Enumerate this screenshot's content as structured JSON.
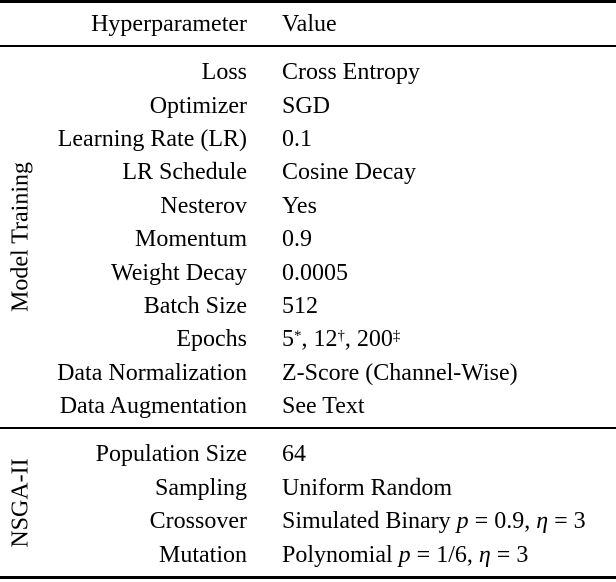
{
  "table": {
    "colors": {
      "text": "#000000",
      "background": "#ffffff",
      "rule": "#000000"
    },
    "header": {
      "col1": "Hyperparameter",
      "col2": "Value"
    },
    "sections": [
      {
        "group_label": "Model Training",
        "rows": [
          {
            "label": "Loss",
            "value": [
              {
                "t": "Cross Entropy"
              }
            ]
          },
          {
            "label": "Optimizer",
            "value": [
              {
                "t": "SGD"
              }
            ]
          },
          {
            "label": "Learning Rate (LR)",
            "value": [
              {
                "t": "0.1"
              }
            ]
          },
          {
            "label": "LR Schedule",
            "value": [
              {
                "t": "Cosine Decay"
              }
            ]
          },
          {
            "label": "Nesterov",
            "value": [
              {
                "t": "Yes"
              }
            ]
          },
          {
            "label": "Momentum",
            "value": [
              {
                "t": "0.9"
              }
            ]
          },
          {
            "label": "Weight Decay",
            "value": [
              {
                "t": "0.0005"
              }
            ]
          },
          {
            "label": "Batch Size",
            "value": [
              {
                "t": "512"
              }
            ]
          },
          {
            "label": "Epochs",
            "value": [
              {
                "t": "5"
              },
              {
                "t": "*",
                "s": "sup"
              },
              {
                "t": ", 12"
              },
              {
                "t": "†",
                "s": "sup"
              },
              {
                "t": ", 200"
              },
              {
                "t": "‡",
                "s": "sup"
              }
            ]
          },
          {
            "label": "Data Normalization",
            "value": [
              {
                "t": "Z-Score (Channel-Wise)"
              }
            ]
          },
          {
            "label": "Data Augmentation",
            "value": [
              {
                "t": "See Text"
              }
            ]
          }
        ]
      },
      {
        "group_label": "NSGA-II",
        "rows": [
          {
            "label": "Population Size",
            "value": [
              {
                "t": "64"
              }
            ]
          },
          {
            "label": "Sampling",
            "value": [
              {
                "t": "Uniform Random"
              }
            ]
          },
          {
            "label": "Crossover",
            "value": [
              {
                "t": "Simulated Binary "
              },
              {
                "t": "p",
                "s": "italic"
              },
              {
                "t": " = 0.9, "
              },
              {
                "t": "η",
                "s": "italic"
              },
              {
                "t": " = 3"
              }
            ]
          },
          {
            "label": "Mutation",
            "value": [
              {
                "t": "Polynomial "
              },
              {
                "t": "p",
                "s": "italic"
              },
              {
                "t": " = 1/6, "
              },
              {
                "t": "η",
                "s": "italic"
              },
              {
                "t": " = 3"
              }
            ]
          }
        ]
      }
    ]
  }
}
